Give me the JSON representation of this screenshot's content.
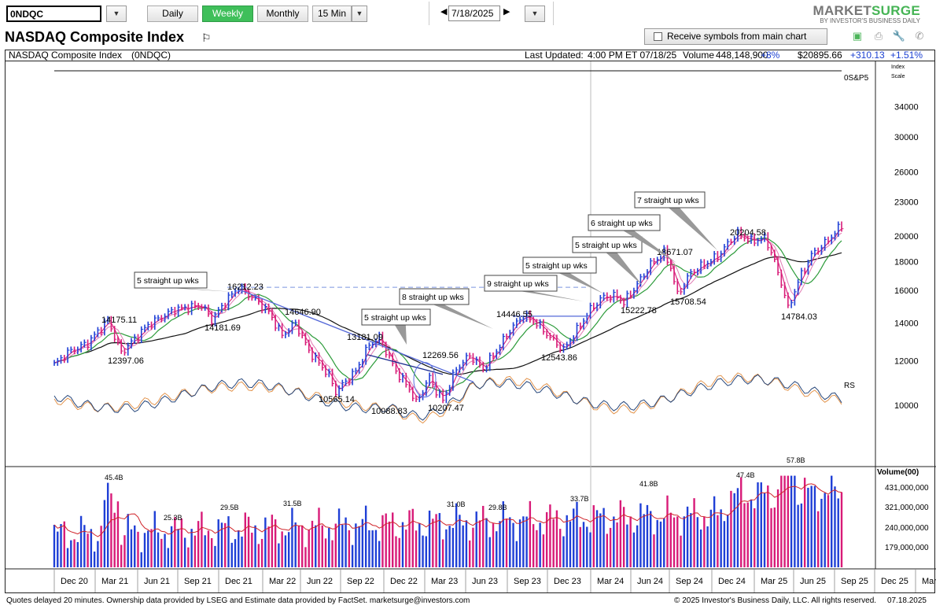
{
  "toolbar": {
    "symbol": "0NDQC",
    "periods": [
      "Daily",
      "Weekly",
      "Monthly",
      "15 Min"
    ],
    "date": "7/18/2025",
    "brand_a": "MARKET",
    "brand_b": "SURGE",
    "brand_tagline": "BY INVESTOR'S BUSINESS DAILY"
  },
  "header": {
    "title": "NASDAQ Composite Index",
    "receive_label": "Receive symbols from main chart"
  },
  "infobar": {
    "name": "NASDAQ Composite Index",
    "symbol": "(0NDQC)",
    "last_updated_label": "Last Updated:",
    "last_updated": "4:00 PM ET 07/18/25",
    "volume_label": "Volume",
    "volume": "448,148,900",
    "volume_change": "+8%",
    "price": "$20895.66",
    "change": "+310.13",
    "change_pct": "+1.51%"
  },
  "chart_data": {
    "type": "ohlc_weekly",
    "title": "NASDAQ Composite Index (0NDQC)",
    "x_labels": [
      "Dec 20",
      "Mar 21",
      "Jun 21",
      "Sep 21",
      "Dec 21",
      "Mar 22",
      "Jun 22",
      "Sep 22",
      "Dec 22",
      "Mar 23",
      "Jun 23",
      "Sep 23",
      "Dec 23",
      "Mar 24",
      "Jun 24",
      "Sep 24",
      "Dec 24",
      "Mar 25",
      "Jun 25",
      "Sep 25",
      "Dec 25",
      "Mar"
    ],
    "price_ticks": [
      10000,
      12000,
      14000,
      16000,
      18000,
      20000,
      23000,
      26000,
      30000,
      34000
    ],
    "index_label": "0S&P5",
    "scale_label_1": "Index",
    "scale_label_2": "Scale",
    "rs_label": "RS",
    "price_labels": [
      "14175.11",
      "12397.06",
      "16212.23",
      "14181.69",
      "14646.90",
      "13181.09",
      "10565.14",
      "10088.83",
      "10207.47",
      "12269.56",
      "14446.55",
      "12543.86",
      "15222.78",
      "18671.07",
      "15708.54",
      "20204.58",
      "14784.03"
    ],
    "annotations": [
      "5 straight up wks",
      "5 straight up wks",
      "8 straight up wks",
      "9 straight up wks",
      "5 straight up wks",
      "5 straight up wks",
      "6 straight up wks",
      "7 straight up wks"
    ],
    "volume_title": "Volume(00)",
    "volume_ticks": [
      "431,000,000",
      "321,000,000",
      "240,000,000",
      "179,000,000"
    ],
    "volume_labels": [
      "45.4B",
      "25.3B",
      "29.5B",
      "31.5B",
      "31.0B",
      "29.8B",
      "33.7B",
      "41.8B",
      "47.4B",
      "57.8B"
    ],
    "key_points": [
      {
        "date": "Mar 21",
        "value": 14175.11
      },
      {
        "date": "Nov 21",
        "value": 16212.23
      },
      {
        "date": "Jun 22",
        "value": 10565.14
      },
      {
        "date": "Dec 22",
        "value": 10088.83
      },
      {
        "date": "Jul 23",
        "value": 14446.55
      },
      {
        "date": "Jul 24",
        "value": 18671.07
      },
      {
        "date": "Dec 24",
        "value": 20204.58
      },
      {
        "date": "Apr 25",
        "value": 14784.03
      }
    ],
    "colors": {
      "up": "#1f3fd6",
      "down": "#d81b78",
      "ma50": "#d81b78",
      "ma10": "#e07ab3",
      "ma21": "#2c9b3a",
      "ma200": "#111111"
    }
  },
  "footer": {
    "left": "Quotes delayed 20 minutes. Ownership data provided by LSEG and Estimate data provided by FactSet. marketsurge@investors.com",
    "right": "© 2025 Investor's Business Daily, LLC. All rights reserved.",
    "date": "07.18.2025"
  }
}
